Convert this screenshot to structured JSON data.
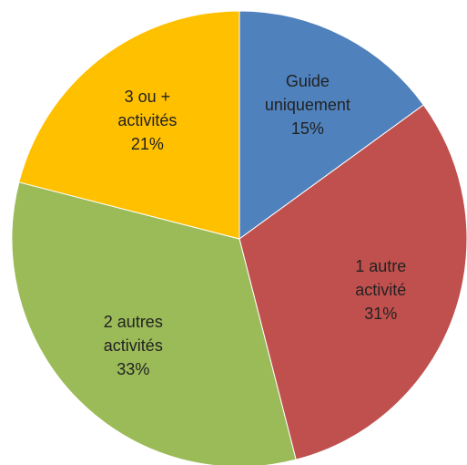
{
  "chart_data": {
    "type": "pie",
    "categories": [
      "Guide uniquement",
      "1 autre activité",
      "2 autres activités",
      "3 ou + activités"
    ],
    "values": [
      15,
      31,
      33,
      21
    ],
    "value_labels": [
      "15%",
      "31%",
      "33%",
      "21%"
    ],
    "colors": [
      "#4f81bd",
      "#c0504d",
      "#9bbb59",
      "#ffc000"
    ]
  }
}
